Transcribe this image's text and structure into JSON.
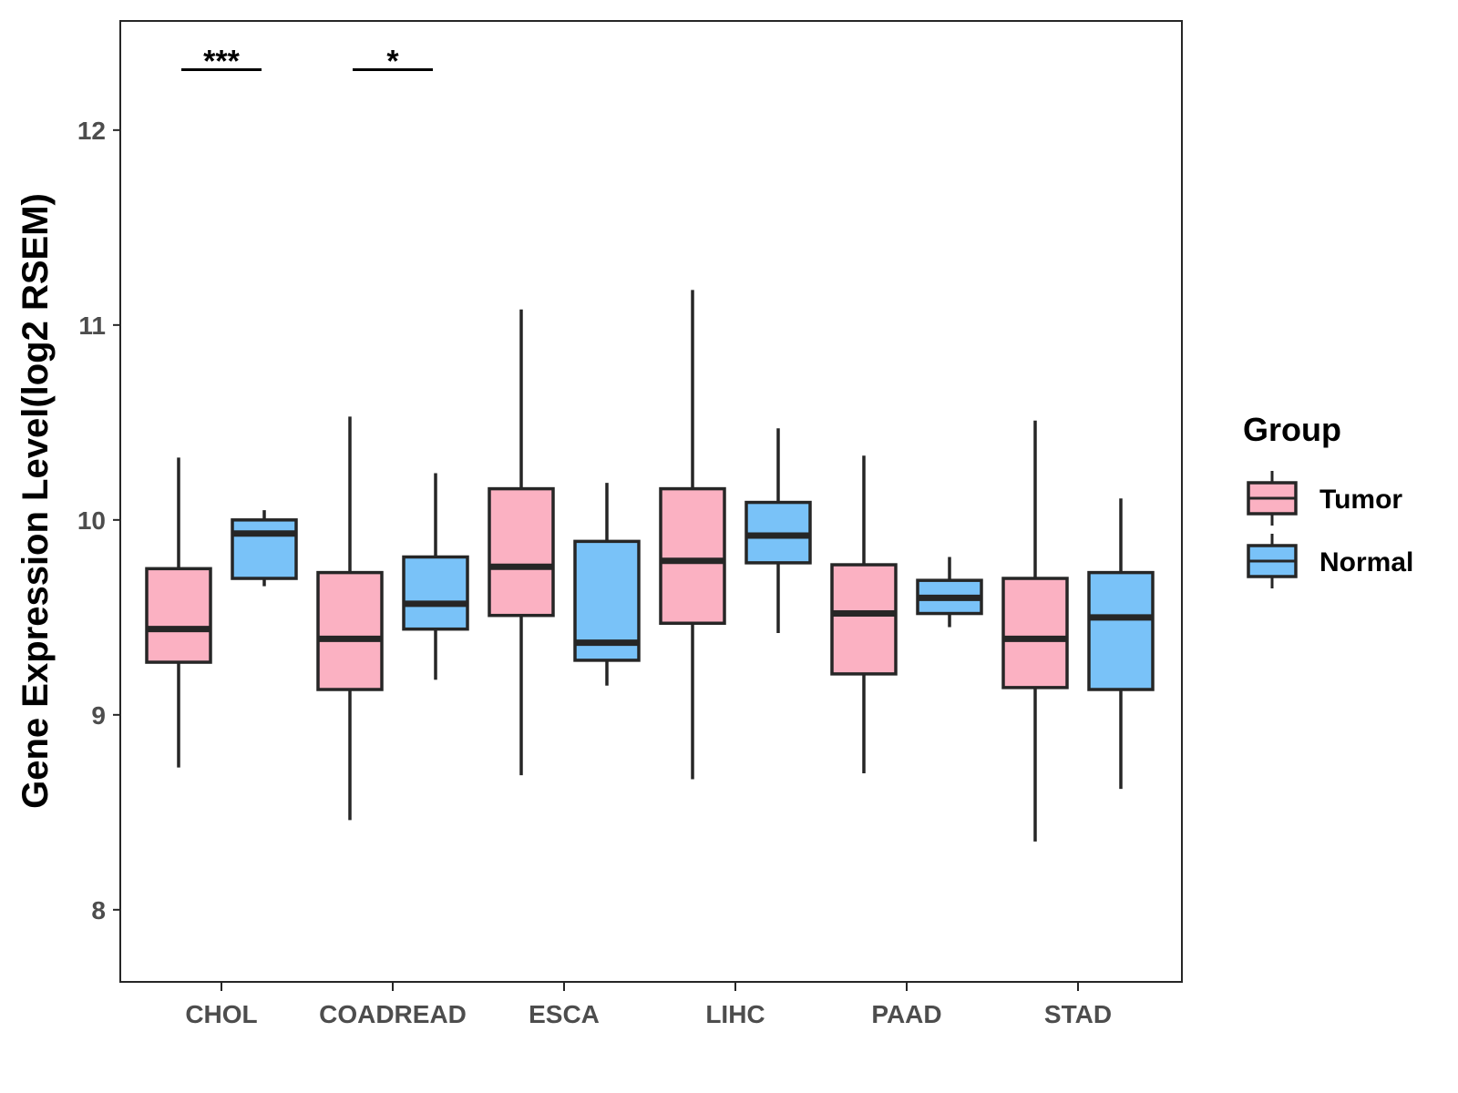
{
  "chart_data": {
    "type": "boxplot",
    "title": "",
    "xlabel": "",
    "ylabel": "Gene Expression Level(log2 RSEM)",
    "ylim": [
      7.63,
      12.56
    ],
    "yticks": [
      8,
      9,
      10,
      11,
      12
    ],
    "categories": [
      "CHOL",
      "COADREAD",
      "ESCA",
      "LIHC",
      "PAAD",
      "STAD"
    ],
    "grid": false,
    "legend": {
      "title": "Group",
      "position": "right",
      "entries": [
        "Tumor",
        "Normal"
      ]
    },
    "colors": {
      "Tumor": "#FBB1C2",
      "Normal": "#79C2F8",
      "outline": "#262626"
    },
    "series": [
      {
        "name": "Tumor",
        "boxes": [
          {
            "min": 8.73,
            "q1": 9.27,
            "median": 9.44,
            "q3": 9.75,
            "max": 10.32
          },
          {
            "min": 8.46,
            "q1": 9.13,
            "median": 9.39,
            "q3": 9.73,
            "max": 10.53
          },
          {
            "min": 8.69,
            "q1": 9.51,
            "median": 9.76,
            "q3": 10.16,
            "max": 11.08
          },
          {
            "min": 8.67,
            "q1": 9.47,
            "median": 9.79,
            "q3": 10.16,
            "max": 11.18
          },
          {
            "min": 8.7,
            "q1": 9.21,
            "median": 9.52,
            "q3": 9.77,
            "max": 10.33
          },
          {
            "min": 8.35,
            "q1": 9.14,
            "median": 9.39,
            "q3": 9.7,
            "max": 10.51
          }
        ]
      },
      {
        "name": "Normal",
        "boxes": [
          {
            "min": 9.66,
            "q1": 9.7,
            "median": 9.93,
            "q3": 10.0,
            "max": 10.05
          },
          {
            "min": 9.18,
            "q1": 9.44,
            "median": 9.57,
            "q3": 9.81,
            "max": 10.24
          },
          {
            "min": 9.15,
            "q1": 9.28,
            "median": 9.37,
            "q3": 9.89,
            "max": 10.19
          },
          {
            "min": 9.42,
            "q1": 9.78,
            "median": 9.92,
            "q3": 10.09,
            "max": 10.47
          },
          {
            "min": 9.45,
            "q1": 9.52,
            "median": 9.6,
            "q3": 9.69,
            "max": 9.81
          },
          {
            "min": 8.62,
            "q1": 9.13,
            "median": 9.5,
            "q3": 9.73,
            "max": 10.11
          }
        ]
      }
    ],
    "annotations": [
      {
        "category": "CHOL",
        "label": "***",
        "y": 12.31
      },
      {
        "category": "COADREAD",
        "label": "*",
        "y": 12.31
      }
    ]
  }
}
